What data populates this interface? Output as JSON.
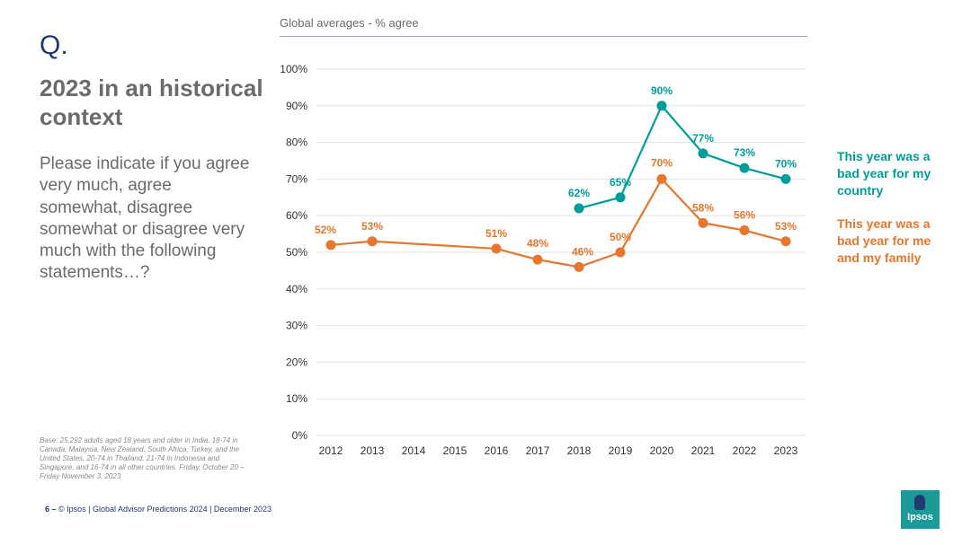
{
  "slide": {
    "q_label": "Q.",
    "title": "2023 in an historical context",
    "question": "Please indicate if you agree very much, agree somewhat, disagree somewhat or disagree very much with the following statements…?",
    "base_note": "Base: 25,292 adults aged 18 years and older in India, 18-74 in Canada, Malaysia, New Zealand, South Africa, Turkey, and the United States, 20-74 in Thailand, 21-74 in Indonesia and Singapore, and 16-74 in all other countries. Friday, October 20 – Friday November 3, 2023",
    "page_number": "6 –",
    "footer_text": "© Ipsos | Global Advisor Predictions 2024 | December 2023",
    "logo_text": "Ipsos"
  },
  "colors": {
    "country": "#009d9a",
    "family": "#e8762d",
    "grid": "#e3e3e3",
    "axis_text": "#333333"
  },
  "chart_data": {
    "type": "line",
    "title": "Global averages - % agree",
    "xlabel": "",
    "ylabel": "",
    "ylim": [
      0,
      100
    ],
    "yticks": [
      "0%",
      "10%",
      "20%",
      "30%",
      "40%",
      "50%",
      "60%",
      "70%",
      "80%",
      "90%",
      "100%"
    ],
    "categories": [
      "2012",
      "2013",
      "2014",
      "2015",
      "2016",
      "2017",
      "2018",
      "2019",
      "2020",
      "2021",
      "2022",
      "2023"
    ],
    "grid": true,
    "legend": "right",
    "series": [
      {
        "key": "country",
        "name": "This year was a bad year for my country",
        "values": [
          null,
          null,
          null,
          null,
          null,
          null,
          62,
          65,
          90,
          77,
          73,
          70
        ],
        "labels": [
          null,
          null,
          null,
          null,
          null,
          null,
          "62%",
          "65%",
          "90%",
          "77%",
          "73%",
          "70%"
        ]
      },
      {
        "key": "family",
        "name": "This year was a bad year for me and my family",
        "values": [
          52,
          53,
          null,
          null,
          51,
          48,
          46,
          50,
          70,
          58,
          56,
          53
        ],
        "labels": [
          "52%",
          "53%",
          null,
          null,
          "51%",
          "48%",
          "46%",
          "50%",
          "70%",
          "58%",
          "56%",
          "53%"
        ]
      }
    ]
  }
}
